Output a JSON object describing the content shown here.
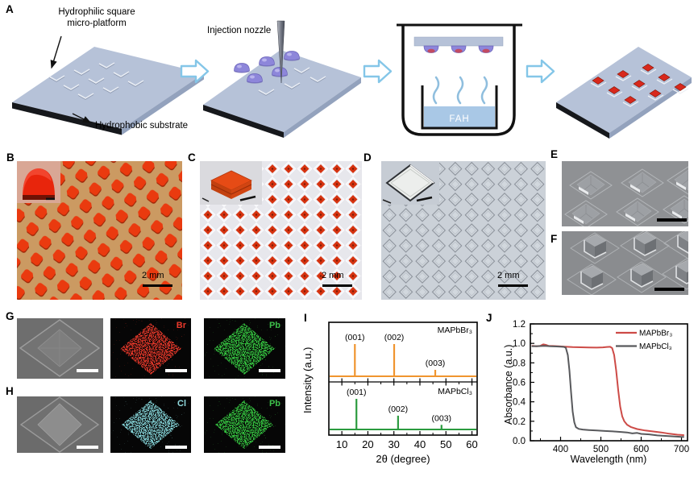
{
  "figure": {
    "panel_a": {
      "label": "A",
      "platform_label": "Hydrophilic square\nmicro-platform",
      "nozzle_label": "Injection nozzle",
      "substrate_label": "Hydrophobic substrate",
      "bath_label": "FAH"
    },
    "panel_b": {
      "label": "B",
      "scale_bar": "2 mm"
    },
    "panel_c": {
      "label": "C",
      "scale_bar": "2 mm"
    },
    "panel_d": {
      "label": "D",
      "scale_bar": "2 mm"
    },
    "panel_e": {
      "label": "E"
    },
    "panel_f": {
      "label": "F"
    },
    "panel_g": {
      "label": "G",
      "map1_label": "Br",
      "map1_color": "#e8392b",
      "map2_label": "Pb",
      "map2_color": "#3dbf4a"
    },
    "panel_h": {
      "label": "H",
      "map1_label": "Cl",
      "map1_color": "#8fd8dc",
      "map2_label": "Pb",
      "map2_color": "#3dbf4a"
    },
    "panel_i": {
      "label": "I"
    },
    "panel_j": {
      "label": "J"
    }
  },
  "chart_data": [
    {
      "type": "line",
      "panel": "I",
      "subtype": "XRD stick pattern, two stacked subplots sharing x-axis",
      "xlabel": "2θ (degree)",
      "ylabel": "Intensity (a.u.)",
      "xlim": [
        5,
        62
      ],
      "xticks": [
        10,
        20,
        30,
        40,
        50,
        60
      ],
      "grid": false,
      "series": [
        {
          "name": "MAPbBr₃",
          "color": "#f0952f",
          "subplot": "top",
          "peaks": [
            {
              "label": "(001)",
              "two_theta": 15.0,
              "rel_intensity": 1.0
            },
            {
              "label": "(002)",
              "two_theta": 30.1,
              "rel_intensity": 1.0
            },
            {
              "label": "(003)",
              "two_theta": 45.9,
              "rel_intensity": 0.2
            }
          ]
        },
        {
          "name": "MAPbCl₃",
          "color": "#2b9b3f",
          "subplot": "bottom",
          "peaks": [
            {
              "label": "(001)",
              "two_theta": 15.6,
              "rel_intensity": 1.0
            },
            {
              "label": "(002)",
              "two_theta": 31.6,
              "rel_intensity": 0.45
            },
            {
              "label": "(003)",
              "two_theta": 48.3,
              "rel_intensity": 0.15
            }
          ]
        }
      ]
    },
    {
      "type": "line",
      "panel": "J",
      "xlabel": "Wavelength (nm)",
      "ylabel": "Absorbance (a.u.)",
      "xlim": [
        325,
        715
      ],
      "ylim": [
        0,
        1.2
      ],
      "xticks": [
        400,
        500,
        600,
        700
      ],
      "yticks": [
        0,
        0.2,
        0.4,
        0.6,
        0.8,
        1.0,
        1.2
      ],
      "legend_position": "top-right",
      "series": [
        {
          "name": "MAPbBr₃",
          "color": "#cd4b47",
          "x": [
            330,
            340,
            350,
            357,
            363,
            370,
            380,
            395,
            410,
            430,
            450,
            470,
            490,
            505,
            515,
            523,
            528,
            533,
            538,
            543,
            548,
            553,
            558,
            565,
            575,
            590,
            610,
            630,
            650,
            670,
            690,
            705
          ],
          "y": [
            0.975,
            0.97,
            0.975,
            0.99,
            0.985,
            0.975,
            0.973,
            0.97,
            0.966,
            0.962,
            0.96,
            0.958,
            0.957,
            0.959,
            0.963,
            0.965,
            0.952,
            0.88,
            0.72,
            0.52,
            0.35,
            0.25,
            0.2,
            0.165,
            0.14,
            0.12,
            0.105,
            0.095,
            0.085,
            0.072,
            0.062,
            0.058
          ]
        },
        {
          "name": "MAPbCl₃",
          "color": "#58595c",
          "x": [
            330,
            345,
            360,
            375,
            390,
            400,
            408,
            413,
            418,
            422,
            426,
            430,
            434,
            438,
            445,
            455,
            470,
            490,
            510,
            530,
            550,
            565,
            578,
            590,
            600,
            620,
            640,
            660,
            680,
            700,
            705
          ],
          "y": [
            0.97,
            0.972,
            0.974,
            0.97,
            0.968,
            0.966,
            0.964,
            0.955,
            0.88,
            0.72,
            0.5,
            0.3,
            0.19,
            0.14,
            0.122,
            0.115,
            0.11,
            0.105,
            0.1,
            0.096,
            0.09,
            0.085,
            0.075,
            0.08,
            0.07,
            0.065,
            0.055,
            0.05,
            0.045,
            0.04,
            0.04
          ]
        }
      ]
    }
  ]
}
